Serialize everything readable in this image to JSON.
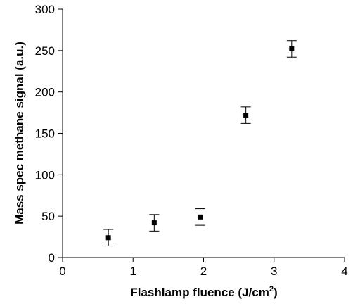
{
  "chart_data": {
    "type": "scatter",
    "title": "",
    "xlabel": "Flashlamp fluence (J/cm",
    "xlabel_sup": "2",
    "xlabel_end": ")",
    "ylabel": "Mass spec  methane signal (a.u.)",
    "xlim": [
      0,
      4
    ],
    "ylim": [
      0,
      300
    ],
    "x_ticks": [
      0,
      1,
      2,
      3,
      4
    ],
    "y_ticks": [
      0,
      50,
      100,
      150,
      200,
      250,
      300
    ],
    "grid": false,
    "legend": false,
    "marker": "square",
    "marker_color": "#000000",
    "points": [
      {
        "x": 0.65,
        "y": 24,
        "err": 10
      },
      {
        "x": 1.3,
        "y": 42,
        "err": 10
      },
      {
        "x": 1.95,
        "y": 49,
        "err": 10
      },
      {
        "x": 2.6,
        "y": 172,
        "err": 10
      },
      {
        "x": 3.25,
        "y": 252,
        "err": 10
      }
    ]
  }
}
